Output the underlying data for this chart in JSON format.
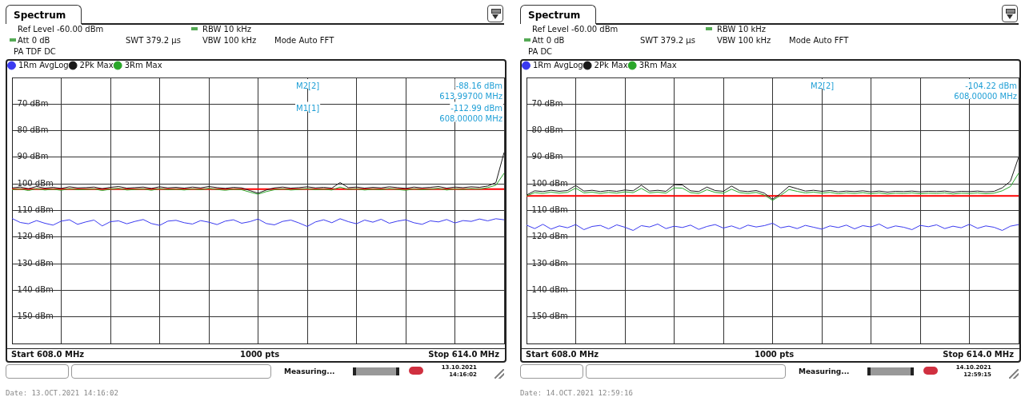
{
  "chart_data": [
    {
      "type": "line",
      "title": "Spectrum",
      "legend": "top left",
      "grid": true,
      "marker": "none",
      "tick_labels": "y",
      "ylim": [
        -160,
        -60
      ],
      "yticks": [
        {
          "value": -160,
          "label": null
        },
        {
          "value": -150,
          "label": "-150 dBm"
        },
        {
          "value": -140,
          "label": "-140 dBm"
        },
        {
          "value": -130,
          "label": "-130 dBm"
        },
        {
          "value": -120,
          "label": "-120 dBm"
        },
        {
          "value": -110,
          "label": "-110 dBm"
        },
        {
          "value": -100,
          "label": "-100 dBm"
        },
        {
          "value": -90,
          "label": "-90 dBm"
        },
        {
          "value": -80,
          "label": "-80 dBm"
        },
        {
          "value": -70,
          "label": "-70 dBm"
        },
        {
          "value": -60,
          "label": null
        }
      ],
      "categories": [
        null,
        null,
        null,
        null,
        null,
        null,
        null,
        null,
        null,
        null,
        null,
        null,
        null,
        null,
        null,
        null,
        null,
        null,
        null,
        null,
        null,
        null,
        null,
        null,
        null,
        null,
        null,
        null,
        null,
        null,
        null,
        null,
        null,
        null,
        null,
        null,
        null,
        null,
        null,
        null,
        null,
        null,
        null,
        null,
        null,
        null,
        null,
        null,
        null,
        null,
        null,
        null,
        null,
        null,
        null,
        null,
        null,
        null,
        null,
        null,
        null
      ],
      "series": [
        {
          "name": "1Rm AvgLog",
          "color": "#3a3af0",
          "values": [
            -113,
            -114.5,
            -115,
            -113.8,
            -114.8,
            -115.5,
            -114,
            -113.5,
            -115.2,
            -114.3,
            -113.6,
            -115.8,
            -114.2,
            -113.9,
            -115,
            -114.1,
            -113.4,
            -114.9,
            -115.6,
            -114,
            -113.7,
            -114.6,
            -115.1,
            -113.8,
            -114.4,
            -115.3,
            -114,
            -113.5,
            -114.8,
            -114.2,
            -113.2,
            -114.9,
            -115.4,
            -114.1,
            -113.6,
            -114.7,
            -116,
            -114.3,
            -113.5,
            -114.6,
            -113.1,
            -114.2,
            -115,
            -113.6,
            -114.4,
            -113.3,
            -114.8,
            -114,
            -113.5,
            -114.6,
            -115.2,
            -113.9,
            -114.3,
            -113.4,
            -114.7,
            -113.8,
            -114.1,
            -113.2,
            -113.9,
            -113.1,
            -113.5
          ]
        },
        {
          "name": "2Pk Max",
          "color": "#1a1a1a",
          "values": [
            -101.5,
            -101.2,
            -101.8,
            -101,
            -101.6,
            -101.3,
            -101.7,
            -101.1,
            -101.5,
            -101.4,
            -101.2,
            -101.8,
            -101.3,
            -101,
            -101.6,
            -101.4,
            -101.2,
            -101.7,
            -101.1,
            -101.5,
            -101.3,
            -101.6,
            -101.2,
            -101.5,
            -101,
            -101.4,
            -101.7,
            -101.3,
            -101.5,
            -102.5,
            -103.5,
            -102.3,
            -101.5,
            -101.2,
            -101.6,
            -101.4,
            -101.1,
            -101.5,
            -101.3,
            -101.6,
            -99.5,
            -101.4,
            -101.2,
            -101.6,
            -101.3,
            -101.5,
            -101.1,
            -101.4,
            -101.7,
            -101.2,
            -101.5,
            -101.3,
            -101,
            -101.6,
            -101.2,
            -101.4,
            -101.1,
            -101.3,
            -100.8,
            -99.5,
            -88.2
          ]
        },
        {
          "name": "3Rm Max",
          "color": "#2aa62a",
          "values": [
            -102.2,
            -101.9,
            -102.5,
            -101.8,
            -102.3,
            -102,
            -102.4,
            -101.8,
            -102.2,
            -102.1,
            -101.9,
            -102.5,
            -102,
            -101.7,
            -102.3,
            -102.1,
            -101.9,
            -102.4,
            -101.8,
            -102.2,
            -102,
            -102.3,
            -101.9,
            -102.2,
            -101.7,
            -102.1,
            -102.4,
            -102,
            -102.2,
            -103.1,
            -103.9,
            -102.9,
            -102.2,
            -101.9,
            -102.3,
            -102.1,
            -101.8,
            -102.2,
            -102,
            -102.3,
            -101.2,
            -102.1,
            -101.9,
            -102.3,
            -102,
            -102.2,
            -101.8,
            -102.1,
            -102.4,
            -101.9,
            -102.2,
            -102,
            -101.7,
            -102.3,
            -101.9,
            -102.1,
            -101.8,
            -102,
            -101.4,
            -100.5,
            -96
          ]
        }
      ],
      "ref_lines": [
        {
          "axis": "y",
          "value": -102,
          "color": "#ff0000"
        }
      ],
      "annotations": [
        "Ref Level -60.00 dBm",
        "Att 0 dB",
        "SWT 379.2 µs",
        "RBW 10 kHz",
        "VBW 100 kHz",
        "Mode Auto FFT",
        "PA TDF DC",
        "Start 608.0 MHz",
        "1000 pts",
        "Stop 614.0 MHz",
        "Measuring...",
        "13.10.2021",
        "14:16:02",
        "Date: 13.OCT.2021  14:16:02",
        "M2[2]",
        "-88.16 dBm",
        "613.99700 MHz",
        "M1[1]",
        "-112.99 dBm",
        "608.00000 MHz"
      ]
    },
    {
      "type": "line",
      "title": "Spectrum",
      "legend": "top left",
      "grid": true,
      "marker": "none",
      "tick_labels": "y",
      "ylim": [
        -160,
        -60
      ],
      "yticks": [
        {
          "value": -160,
          "label": null
        },
        {
          "value": -150,
          "label": "-150 dBm"
        },
        {
          "value": -140,
          "label": "-140 dBm"
        },
        {
          "value": -130,
          "label": "-130 dBm"
        },
        {
          "value": -120,
          "label": "-120 dBm"
        },
        {
          "value": -110,
          "label": "-110 dBm"
        },
        {
          "value": -100,
          "label": "-100 dBm"
        },
        {
          "value": -90,
          "label": "-90 dBm"
        },
        {
          "value": -80,
          "label": "-80 dBm"
        },
        {
          "value": -70,
          "label": "-70 dBm"
        },
        {
          "value": -60,
          "label": null
        }
      ],
      "categories": [
        null,
        null,
        null,
        null,
        null,
        null,
        null,
        null,
        null,
        null,
        null,
        null,
        null,
        null,
        null,
        null,
        null,
        null,
        null,
        null,
        null,
        null,
        null,
        null,
        null,
        null,
        null,
        null,
        null,
        null,
        null,
        null,
        null,
        null,
        null,
        null,
        null,
        null,
        null,
        null,
        null,
        null,
        null,
        null,
        null,
        null,
        null,
        null,
        null,
        null,
        null,
        null,
        null,
        null,
        null,
        null,
        null,
        null,
        null,
        null,
        null
      ],
      "series": [
        {
          "name": "1Rm AvgLog",
          "color": "#3a3af0",
          "values": [
            -115.5,
            -116.8,
            -115.2,
            -117,
            -115.8,
            -116.5,
            -115.3,
            -117.2,
            -116,
            -115.6,
            -116.9,
            -115.4,
            -116.3,
            -117.5,
            -115.7,
            -116.2,
            -115.1,
            -116.8,
            -115.9,
            -116.4,
            -115.5,
            -117.1,
            -116,
            -115.3,
            -116.6,
            -115.8,
            -116.9,
            -115.5,
            -116.2,
            -115.7,
            -114.8,
            -116.5,
            -115.9,
            -116.8,
            -115.6,
            -116.3,
            -117,
            -115.8,
            -116.4,
            -115.5,
            -116.9,
            -115.7,
            -116.2,
            -115.1,
            -116.7,
            -115.8,
            -116.3,
            -117.2,
            -115.6,
            -116.1,
            -115.4,
            -116.8,
            -115.9,
            -116.5,
            -115.2,
            -116.7,
            -115.8,
            -116.3,
            -117.5,
            -115.9,
            -115.3
          ]
        },
        {
          "name": "2Pk Max",
          "color": "#1a1a1a",
          "values": [
            -104.2,
            -102.6,
            -102.9,
            -102.4,
            -102.8,
            -102.5,
            -100.6,
            -102.7,
            -102.4,
            -102.9,
            -102.5,
            -102.8,
            -102.3,
            -102.6,
            -100.5,
            -102.7,
            -102.4,
            -102.8,
            -100.3,
            -100.4,
            -102.6,
            -102.9,
            -101.2,
            -102.5,
            -102.8,
            -100.8,
            -102.6,
            -102.9,
            -102.5,
            -103.5,
            -105.8,
            -103.6,
            -100.9,
            -101.8,
            -102.7,
            -102.4,
            -102.8,
            -102.5,
            -103,
            -102.7,
            -102.9,
            -102.6,
            -103,
            -102.7,
            -103.1,
            -102.8,
            -102.9,
            -102.7,
            -103,
            -102.8,
            -102.9,
            -102.7,
            -103.1,
            -102.8,
            -102.9,
            -102.7,
            -103,
            -102.8,
            -101.5,
            -99,
            -90
          ]
        },
        {
          "name": "3Rm Max",
          "color": "#2aa62a",
          "values": [
            -104.5,
            -103.3,
            -103.6,
            -103.1,
            -103.5,
            -103.2,
            -101.6,
            -103.4,
            -103.1,
            -103.6,
            -103.2,
            -103.5,
            -103,
            -103.3,
            -101.7,
            -103.4,
            -103.1,
            -103.5,
            -101.5,
            -101.6,
            -103.3,
            -103.6,
            -102.2,
            -103.2,
            -103.5,
            -102,
            -103.3,
            -103.6,
            -103.2,
            -104.2,
            -106.2,
            -104.3,
            -102.1,
            -102.8,
            -103.4,
            -103.1,
            -103.5,
            -103.2,
            -103.7,
            -103.4,
            -103.6,
            -103.3,
            -103.7,
            -103.4,
            -103.8,
            -103.5,
            -103.6,
            -103.4,
            -103.7,
            -103.5,
            -103.6,
            -103.4,
            -103.8,
            -103.5,
            -103.6,
            -103.4,
            -103.7,
            -103.5,
            -102.6,
            -101,
            -96
          ]
        }
      ],
      "ref_lines": [
        {
          "axis": "y",
          "value": -104.5,
          "color": "#ff0000"
        }
      ],
      "annotations": [
        "Ref Level -60.00 dBm",
        "Att 0 dB",
        "SWT 379.2 µs",
        "RBW 10 kHz",
        "VBW 100 kHz",
        "Mode Auto FFT",
        "PA DC",
        "Start 608.0 MHz",
        "1000 pts",
        "Stop 614.0 MHz",
        "Measuring...",
        "14.10.2021",
        "12:59:15",
        "Date: 14.OCT.2021  12:59:16",
        "M2[2]",
        "-104.22 dBm",
        "608.00000 MHz"
      ]
    }
  ]
}
